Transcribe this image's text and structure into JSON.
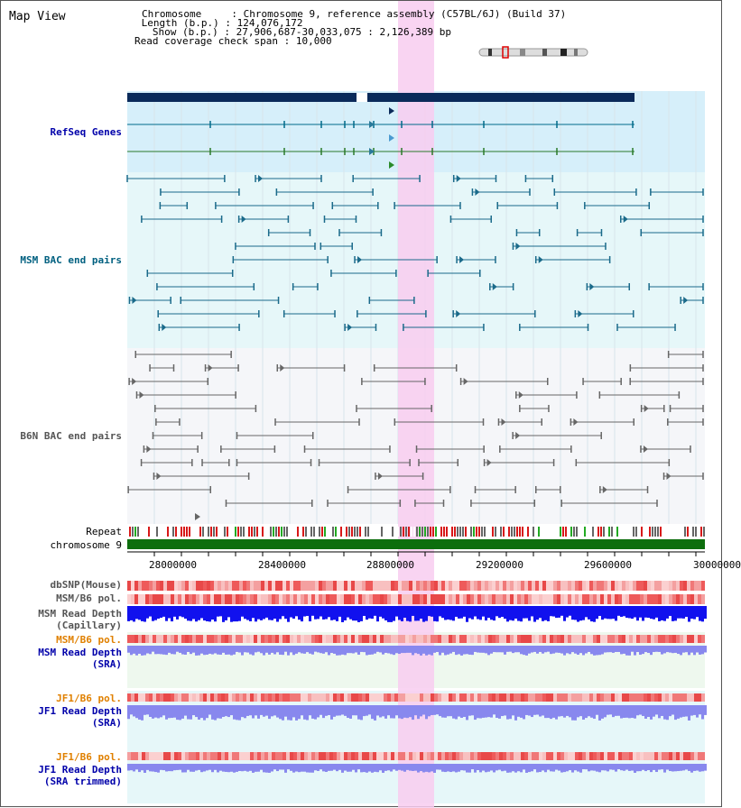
{
  "title": "Map View",
  "info": {
    "chromosome_key": "Chromosome",
    "chromosome": "Chromosome 9, reference assembly (C57BL/6J) (Build 37)",
    "length_key": "Length (b.p.)",
    "length": "124,076,172",
    "show_key": "Show (b.p.)",
    "show": "27,906,687-30,033,075 : 2,126,389 bp",
    "coverage_key": "Read coverage check span",
    "coverage": "10,000"
  },
  "tracks": {
    "refseq": "RefSeq Genes",
    "msm_bac": "MSM BAC end pairs",
    "b6n_bac": "B6N BAC end pairs",
    "repeat": "Repeat",
    "chromosome": "chromosome 9",
    "dbsnp": "dbSNP(Mouse)",
    "msm_b6_pol_1": "MSM/B6 pol.",
    "msm_depth_cap_1": "MSM Read Depth",
    "msm_depth_cap_2": "(Capillary)",
    "msm_b6_pol_2": "MSM/B6 pol.",
    "msm_depth_sra_1": "MSM Read Depth",
    "msm_depth_sra_2": "(SRA)",
    "jf1_b6_pol_1": "JF1/B6 pol.",
    "jf1_depth_sra_1": "JF1 Read Depth",
    "jf1_depth_sra_2": "(SRA)",
    "jf1_b6_pol_2": "JF1/B6 pol.",
    "jf1_depth_trim_1": "JF1 Read Depth",
    "jf1_depth_trim_2": "(SRA trimmed)"
  },
  "axis_ticks": [
    "28000000",
    "28400000",
    "28800000",
    "29200000",
    "29600000",
    "30000000"
  ],
  "colors": {
    "gene_bar": "#0a2a5a",
    "refseq_bg": "#d6effa",
    "msm_bg": "#e6f7f9",
    "b6n_bg": "#f5f6f9",
    "highlight": "#f8cdf0",
    "chromosome": "#0d6e0d",
    "msm_label": "#006080",
    "refseq_label": "#0000aa",
    "orange_label": "#e08000",
    "blue_label": "#0000aa",
    "depth_cap": "#1111ee",
    "depth_sra": "#8888ee"
  }
}
